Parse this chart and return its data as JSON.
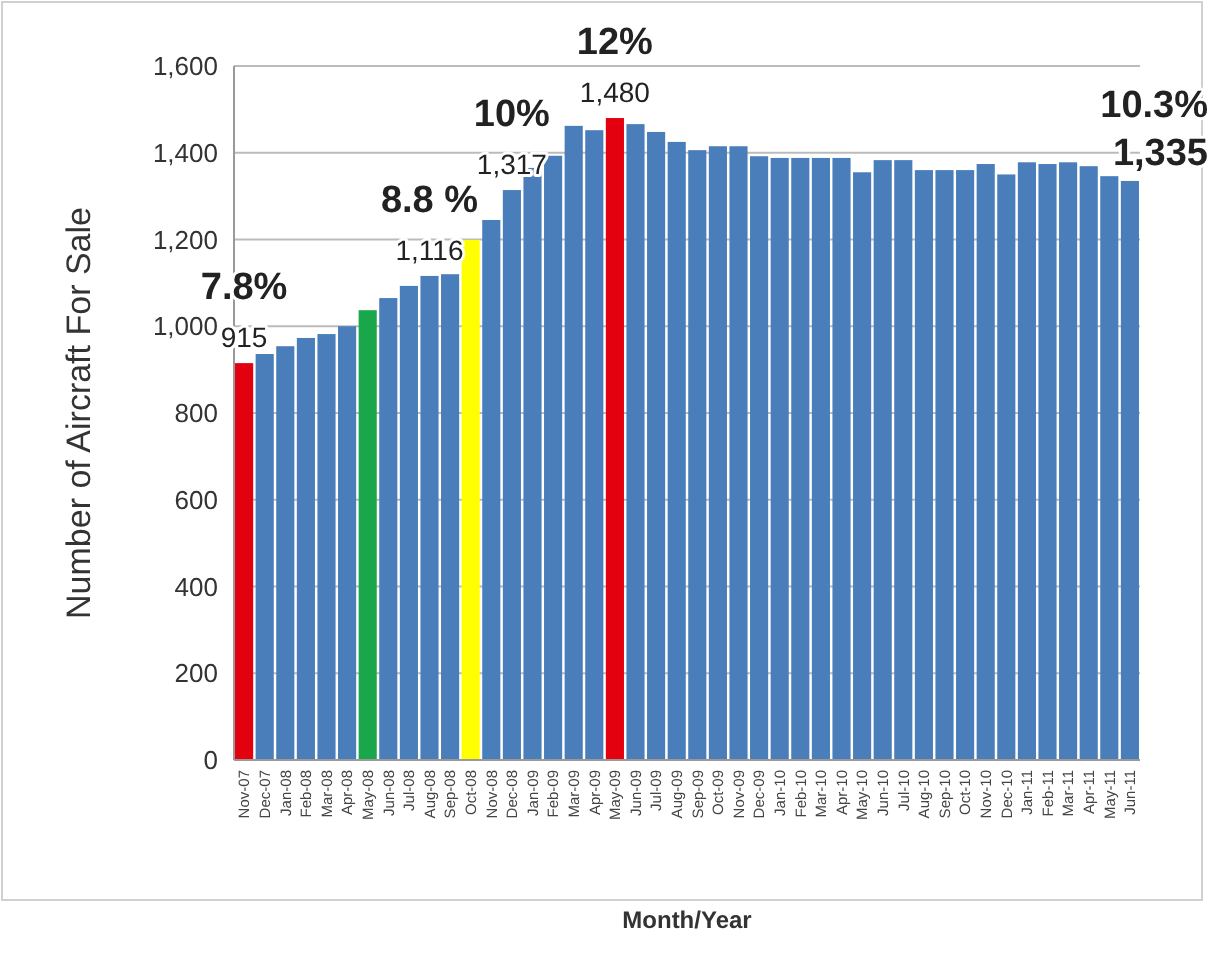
{
  "chart_data": {
    "type": "bar",
    "ylabel": "Number of Aircraft For Sale",
    "xlabel": "Month/Year",
    "categories": [
      "Nov-07",
      "Dec-07",
      "Jan-08",
      "Feb-08",
      "Mar-08",
      "Apr-08",
      "May-08",
      "Jun-08",
      "Jul-08",
      "Aug-08",
      "Sep-08",
      "Oct-08",
      "Nov-08",
      "Dec-08",
      "Jan-09",
      "Feb-09",
      "Mar-09",
      "Apr-09",
      "May-09",
      "Jun-09",
      "Jul-09",
      "Aug-09",
      "Sep-09",
      "Oct-09",
      "Nov-09",
      "Dec-09",
      "Jan-10",
      "Feb-10",
      "Mar-10",
      "Apr-10",
      "May-10",
      "Jun-10",
      "Jul-10",
      "Aug-10",
      "Sep-10",
      "Oct-10",
      "Nov-10",
      "Dec-10",
      "Jan-11",
      "Feb-11",
      "Mar-11",
      "Apr-11",
      "May-11",
      "Jun-11"
    ],
    "values": [
      915,
      936,
      954,
      973,
      982,
      1000,
      1037,
      1065,
      1093,
      1116,
      1120,
      1199,
      1245,
      1314,
      1365,
      1393,
      1462,
      1452,
      1480,
      1466,
      1448,
      1425,
      1406,
      1415,
      1415,
      1392,
      1388,
      1388,
      1388,
      1388,
      1355,
      1383,
      1383,
      1360,
      1360,
      1360,
      1374,
      1350,
      1378,
      1374,
      1378,
      1369,
      1346,
      1335
    ],
    "colors": [
      "#e3000f",
      "#4a7ebb",
      "#4a7ebb",
      "#4a7ebb",
      "#4a7ebb",
      "#4a7ebb",
      "#1aa64a",
      "#4a7ebb",
      "#4a7ebb",
      "#4a7ebb",
      "#4a7ebb",
      "#ffff00",
      "#4a7ebb",
      "#4a7ebb",
      "#4a7ebb",
      "#4a7ebb",
      "#4a7ebb",
      "#4a7ebb",
      "#e3000f",
      "#4a7ebb",
      "#4a7ebb",
      "#4a7ebb",
      "#4a7ebb",
      "#4a7ebb",
      "#4a7ebb",
      "#4a7ebb",
      "#4a7ebb",
      "#4a7ebb",
      "#4a7ebb",
      "#4a7ebb",
      "#4a7ebb",
      "#4a7ebb",
      "#4a7ebb",
      "#4a7ebb",
      "#4a7ebb",
      "#4a7ebb",
      "#4a7ebb",
      "#4a7ebb",
      "#4a7ebb",
      "#4a7ebb",
      "#4a7ebb",
      "#4a7ebb",
      "#4a7ebb",
      "#4a7ebb"
    ],
    "ylim": [
      0,
      1600
    ],
    "yticks": [
      {
        "value": 0,
        "label": "0"
      },
      {
        "value": 200,
        "label": "200"
      },
      {
        "value": 400,
        "label": "400"
      },
      {
        "value": 600,
        "label": "600"
      },
      {
        "value": 800,
        "label": "800"
      },
      {
        "value": 1000,
        "label": "1,000"
      },
      {
        "value": 1200,
        "label": "1,200"
      },
      {
        "value": 1400,
        "label": "1,400"
      },
      {
        "value": 1600,
        "label": "1,600"
      }
    ],
    "grid": "y",
    "annotations": [
      {
        "text": "915",
        "x": "Nov-07",
        "y": 915
      },
      {
        "text": "7.8%",
        "x": "Nov-07",
        "y": 915
      },
      {
        "text": "1,116",
        "x": "Aug-08",
        "y": 1116
      },
      {
        "text": "8.8 %",
        "x": "Aug-08",
        "y": 1116
      },
      {
        "text": "1,317",
        "x": "Dec-08",
        "y": 1314
      },
      {
        "text": "10%",
        "x": "Dec-08",
        "y": 1314
      },
      {
        "text": "1,480",
        "x": "May-09",
        "y": 1480
      },
      {
        "text": "12%",
        "x": "May-09",
        "y": 1480
      },
      {
        "text": "1,335",
        "x": "Jun-11",
        "y": 1335
      },
      {
        "text": "10.3%",
        "x": "Jun-11",
        "y": 1335
      }
    ]
  }
}
